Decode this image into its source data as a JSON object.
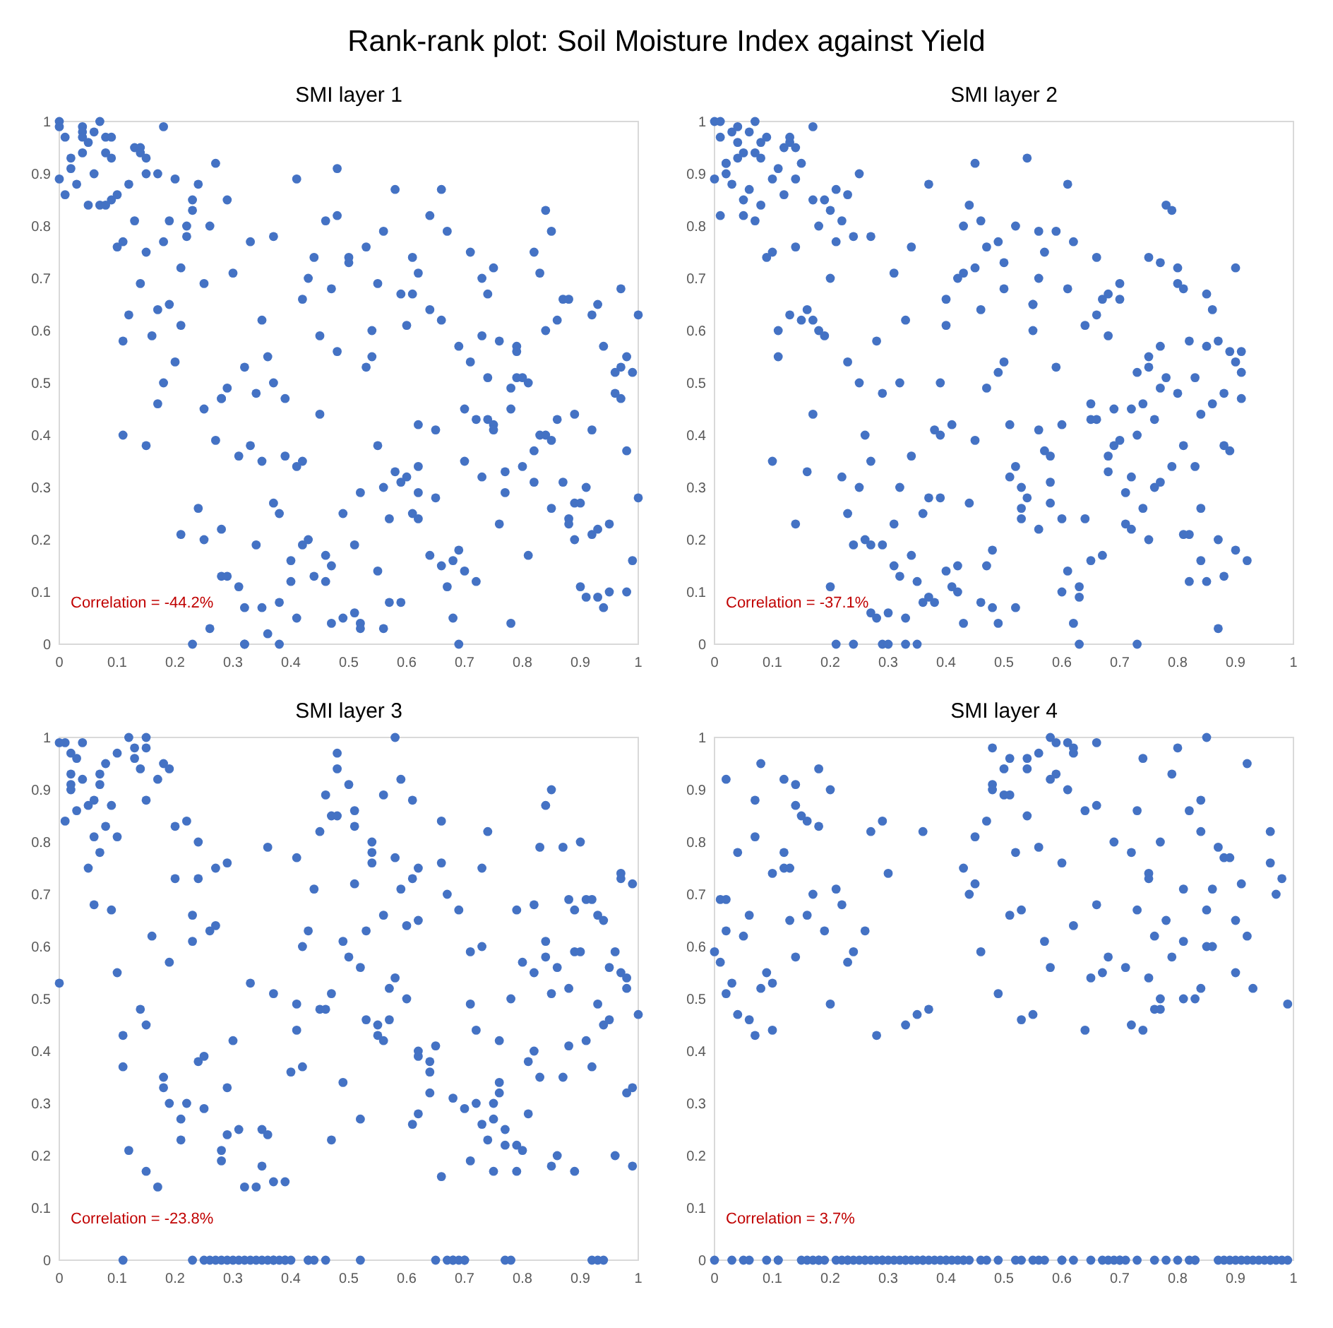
{
  "chart_data": [
    {
      "type": "scatter",
      "title": "Rank-rank plot: Soil Moisture Index against Yield",
      "subtitle": "SMI layer 1",
      "marker": "circle",
      "xlim": [
        0,
        1
      ],
      "ylim": [
        0,
        1
      ],
      "xticks": [
        0,
        0.1,
        0.2,
        0.3,
        0.4,
        0.5,
        0.6,
        0.7,
        0.8,
        0.9,
        1
      ],
      "yticks": [
        0,
        0.1,
        0.2,
        0.3,
        0.4,
        0.5,
        0.6,
        0.7,
        0.8,
        0.9,
        1
      ],
      "annotations": [
        "Correlation = -44.2%"
      ],
      "series": [
        {
          "color": "#4472c4",
          "x": [
            0,
            0,
            0.01,
            0,
            0.01,
            0.02,
            0.02,
            0.03,
            0.04,
            0.04,
            0.04,
            0.05,
            0.04,
            0.06,
            0.07,
            0.06,
            0.08,
            0.09,
            0.08,
            0.09,
            0.05,
            0.07,
            0.08,
            0.09,
            0.1,
            0.12,
            0.13,
            0.14,
            0.14,
            0.15,
            0.15,
            0.17,
            0.18,
            0.2,
            0.1,
            0.11,
            0.13,
            0.15,
            0.14,
            0.12,
            0.11,
            0.11,
            0.15,
            0.16,
            0.17,
            0.19,
            0.18,
            0.19,
            0.22,
            0.22,
            0.21,
            0.21,
            0.2,
            0.18,
            0.17,
            0.23,
            0.23,
            0.24,
            0.26,
            0.25,
            0.27,
            0.29,
            0.3,
            0.25,
            0.27,
            0.28,
            0.28,
            0.29,
            0.32,
            0.31,
            0.33,
            0.34,
            0.35,
            0.35,
            0.36,
            0.37,
            0.37,
            0.33,
            0.39,
            0.39,
            0.41,
            0.42,
            0.37,
            0.38,
            0.21,
            0.24,
            0.25,
            0.28,
            0.28,
            0.29,
            0.31,
            0.32,
            0.34,
            0.35,
            0.36,
            0.26,
            0.23,
            0.32,
            0.32,
            0.38,
            0.38,
            0.4,
            0.4,
            0.41,
            0.42,
            0.43,
            0.44,
            0.46,
            0.46,
            0.47,
            0.47,
            0.49,
            0.49,
            0.51,
            0.51,
            0.52,
            0.52,
            0.52,
            0.56,
            0.55,
            0.57,
            0.59,
            0.57,
            0.56,
            0.58,
            0.59,
            0.6,
            0.61,
            0.62,
            0.62,
            0.62,
            0.55,
            0.62,
            0.65,
            0.65,
            0.64,
            0.66,
            0.68,
            0.67,
            0.69,
            0.7,
            0.72,
            0.68,
            0.69,
            0.7,
            0.7,
            0.72,
            0.73,
            0.76,
            0.77,
            0.77,
            0.78,
            0.81,
            0.8,
            0.82,
            0.82,
            0.83,
            0.84,
            0.85,
            0.86,
            0.89,
            0.85,
            0.87,
            0.88,
            0.88,
            0.89,
            0.89,
            0.9,
            0.9,
            0.91,
            0.92,
            0.91,
            0.92,
            0.93,
            0.93,
            0.95,
            0.94,
            0.95,
            0.98,
            0.98,
            0.99,
            1,
            1,
            0.97,
            0.99,
            0.98,
            0.97,
            0.96,
            0.94,
            0.96,
            0.97,
            0.92,
            0.93,
            0.86,
            0.87,
            0.88,
            0.84,
            0.82,
            0.83,
            0.84,
            0.85,
            0.75,
            0.73,
            0.74,
            0.71,
            0.73,
            0.76,
            0.79,
            0.79,
            0.74,
            0.78,
            0.79,
            0.8,
            0.81,
            0.74,
            0.75,
            0.75,
            0.78,
            0.71,
            0.69,
            0.67,
            0.66,
            0.64,
            0.66,
            0.64,
            0.61,
            0.62,
            0.61,
            0.59,
            0.6,
            0.58,
            0.56,
            0.53,
            0.55,
            0.54,
            0.54,
            0.53,
            0.5,
            0.5,
            0.47,
            0.46,
            0.48,
            0.48,
            0.45,
            0.48,
            0.45,
            0.42,
            0.43,
            0.44,
            0.41
          ],
          "values": [
            1,
            0.99,
            0.97,
            0.89,
            0.86,
            0.93,
            0.91,
            0.88,
            0.99,
            0.98,
            0.97,
            0.96,
            0.94,
            0.98,
            1,
            0.9,
            0.94,
            0.93,
            0.97,
            0.97,
            0.84,
            0.84,
            0.84,
            0.85,
            0.86,
            0.88,
            0.95,
            0.95,
            0.94,
            0.93,
            0.9,
            0.9,
            0.99,
            0.89,
            0.76,
            0.77,
            0.81,
            0.75,
            0.69,
            0.63,
            0.58,
            0.4,
            0.38,
            0.59,
            0.64,
            0.65,
            0.77,
            0.81,
            0.8,
            0.78,
            0.72,
            0.61,
            0.54,
            0.5,
            0.46,
            0.85,
            0.83,
            0.88,
            0.8,
            0.69,
            0.92,
            0.85,
            0.71,
            0.45,
            0.39,
            0.47,
            0.47,
            0.49,
            0.53,
            0.36,
            0.38,
            0.48,
            0.35,
            0.62,
            0.55,
            0.5,
            0.78,
            0.77,
            0.47,
            0.36,
            0.34,
            0.35,
            0.27,
            0.25,
            0.21,
            0.26,
            0.2,
            0.22,
            0.13,
            0.13,
            0.11,
            0.07,
            0.19,
            0.07,
            0.02,
            0.03,
            0,
            0,
            0,
            0,
            0.08,
            0.16,
            0.12,
            0.05,
            0.19,
            0.2,
            0.13,
            0.17,
            0.12,
            0.15,
            0.04,
            0.25,
            0.05,
            0.06,
            0.19,
            0.29,
            0.04,
            0.03,
            0.03,
            0.14,
            0.08,
            0.08,
            0.24,
            0.3,
            0.33,
            0.31,
            0.32,
            0.25,
            0.34,
            0.29,
            0.24,
            0.38,
            0.42,
            0.41,
            0.28,
            0.17,
            0.15,
            0.16,
            0.11,
            0.18,
            0.14,
            0.12,
            0.05,
            0,
            0.35,
            0.45,
            0.43,
            0.32,
            0.23,
            0.33,
            0.29,
            0.04,
            0.17,
            0.34,
            0.31,
            0.37,
            0.4,
            0.4,
            0.39,
            0.43,
            0.44,
            0.26,
            0.31,
            0.24,
            0.23,
            0.2,
            0.27,
            0.27,
            0.11,
            0.09,
            0.41,
            0.3,
            0.21,
            0.22,
            0.09,
            0.1,
            0.07,
            0.23,
            0.1,
            0.37,
            0.16,
            0.28,
            0.63,
            0.68,
            0.52,
            0.55,
            0.53,
            0.52,
            0.57,
            0.48,
            0.47,
            0.63,
            0.65,
            0.62,
            0.66,
            0.66,
            0.6,
            0.75,
            0.71,
            0.83,
            0.79,
            0.72,
            0.7,
            0.67,
            0.75,
            0.59,
            0.58,
            0.56,
            0.57,
            0.51,
            0.49,
            0.51,
            0.51,
            0.5,
            0.43,
            0.42,
            0.41,
            0.45,
            0.54,
            0.57,
            0.79,
            0.87,
            0.82,
            0.62,
            0.64,
            0.74,
            0.71,
            0.67,
            0.67,
            0.61,
            0.87,
            0.79,
            0.76,
            0.69,
            0.6,
            0.55,
            0.53,
            0.73,
            0.74,
            0.68,
            0.81,
            0.82,
            0.91,
            0.59,
            0.56,
            0.44,
            0.66,
            0.7,
            0.74,
            0.89
          ]
        }
      ]
    },
    {
      "type": "scatter",
      "title": "SMI layer 2",
      "marker": "circle",
      "xlim": [
        0,
        1
      ],
      "ylim": [
        0,
        1
      ],
      "xticks": [
        0,
        0.1,
        0.2,
        0.3,
        0.4,
        0.5,
        0.6,
        0.7,
        0.8,
        0.9,
        1
      ],
      "yticks": [
        0,
        0.1,
        0.2,
        0.3,
        0.4,
        0.5,
        0.6,
        0.7,
        0.8,
        0.9,
        1
      ],
      "annotations": [
        "Correlation = -37.1%"
      ],
      "series": [
        {
          "color": "#4472c4",
          "x": [
            0,
            0.01,
            0,
            0.01,
            0.01,
            0.02,
            0.02,
            0.02,
            0.03,
            0.03,
            0.04,
            0.04,
            0.04,
            0.05,
            0.05,
            0.05,
            0.06,
            0.06,
            0.07,
            0.07,
            0.08,
            0.08,
            0.07,
            0.08,
            0.09,
            0.1,
            0.09,
            0.1,
            0.11,
            0.12,
            0.12,
            0.13,
            0.13,
            0.14,
            0.14,
            0.15,
            0.17,
            0.14,
            0.11,
            0.11,
            0.13,
            0.15,
            0.16,
            0.17,
            0.18,
            0.19,
            0.17,
            0.18,
            0.19,
            0.2,
            0.21,
            0.23,
            0.22,
            0.21,
            0.24,
            0.25,
            0.27,
            0.2,
            0.23,
            0.25,
            0.17,
            0.1,
            0.14,
            0.16,
            0.2,
            0.22,
            0.23,
            0.24,
            0.25,
            0.26,
            0.27,
            0.26,
            0.27,
            0.28,
            0.29,
            0.29,
            0.27,
            0.28,
            0.3,
            0.31,
            0.31,
            0.32,
            0.32,
            0.32,
            0.31,
            0.34,
            0.33,
            0.34,
            0.34,
            0.33,
            0.35,
            0.37,
            0.36,
            0.36,
            0.37,
            0.38,
            0.39,
            0.37,
            0.39,
            0.38,
            0.39,
            0.4,
            0.4,
            0.41,
            0.4,
            0.41,
            0.42,
            0.42,
            0.43,
            0.44,
            0.42,
            0.43,
            0.45,
            0.43,
            0.44,
            0.45,
            0.46,
            0.47,
            0.46,
            0.45,
            0.46,
            0.47,
            0.47,
            0.48,
            0.48,
            0.49,
            0.49,
            0.49,
            0.5,
            0.5,
            0.5,
            0.51,
            0.51,
            0.52,
            0.52,
            0.52,
            0.53,
            0.53,
            0.53,
            0.54,
            0.54,
            0.55,
            0.55,
            0.55,
            0.56,
            0.56,
            0.56,
            0.57,
            0.56,
            0.57,
            0.58,
            0.58,
            0.58,
            0.59,
            0.59,
            0.6,
            0.6,
            0.6,
            0.61,
            0.61,
            0.62,
            0.61,
            0.63,
            0.63,
            0.62,
            0.63,
            0.64,
            0.64,
            0.65,
            0.65,
            0.65,
            0.66,
            0.66,
            0.66,
            0.67,
            0.67,
            0.68,
            0.68,
            0.68,
            0.68,
            0.69,
            0.7,
            0.69,
            0.7,
            0.7,
            0.71,
            0.71,
            0.72,
            0.72,
            0.72,
            0.73,
            0.73,
            0.73,
            0.74,
            0.74,
            0.75,
            0.75,
            0.75,
            0.75,
            0.76,
            0.76,
            0.77,
            0.77,
            0.77,
            0.77,
            0.78,
            0.79,
            0.78,
            0.79,
            0.8,
            0.8,
            0.8,
            0.81,
            0.81,
            0.81,
            0.82,
            0.82,
            0.82,
            0.83,
            0.83,
            0.84,
            0.84,
            0.84,
            0.85,
            0.85,
            0.86,
            0.86,
            0.85,
            0.87,
            0.87,
            0.87,
            0.88,
            0.88,
            0.88,
            0.89,
            0.89,
            0.9,
            0.9,
            0.91,
            0.9,
            0.91,
            0.91,
            0.92,
            0.21,
            0.24,
            0.29,
            0.3,
            0.33,
            0.35
          ],
          "values": [
            1,
            1,
            0.89,
            0.82,
            0.97,
            0.9,
            0.92,
            0.92,
            0.88,
            0.98,
            0.99,
            0.93,
            0.96,
            0.94,
            0.85,
            0.82,
            0.98,
            0.87,
            1,
            0.94,
            0.96,
            0.93,
            0.81,
            0.84,
            0.97,
            0.89,
            0.74,
            0.75,
            0.91,
            0.86,
            0.95,
            0.96,
            0.97,
            0.95,
            0.89,
            0.92,
            0.99,
            0.76,
            0.6,
            0.55,
            0.63,
            0.62,
            0.64,
            0.62,
            0.6,
            0.59,
            0.85,
            0.8,
            0.85,
            0.83,
            0.87,
            0.86,
            0.81,
            0.77,
            0.78,
            0.9,
            0.78,
            0.7,
            0.54,
            0.5,
            0.44,
            0.35,
            0.23,
            0.33,
            0.11,
            0.32,
            0.25,
            0.19,
            0.3,
            0.4,
            0.35,
            0.2,
            0.19,
            0.58,
            0.48,
            0.19,
            0.06,
            0.05,
            0.06,
            0.15,
            0.23,
            0.13,
            0.3,
            0.5,
            0.71,
            0.76,
            0.62,
            0.36,
            0.17,
            0.05,
            0.12,
            0.09,
            0.08,
            0.25,
            0.28,
            0.08,
            0.28,
            0.88,
            0.5,
            0.41,
            0.4,
            0.61,
            0.66,
            0.42,
            0.14,
            0.11,
            0.1,
            0.15,
            0.04,
            0.27,
            0.7,
            0.71,
            0.72,
            0.8,
            0.84,
            0.92,
            0.81,
            0.76,
            0.64,
            0.39,
            0.08,
            0.15,
            0.49,
            0.18,
            0.07,
            0.04,
            0.77,
            0.52,
            0.54,
            0.73,
            0.68,
            0.42,
            0.32,
            0.07,
            0.8,
            0.34,
            0.26,
            0.24,
            0.3,
            0.28,
            0.93,
            0.65,
            0.65,
            0.6,
            0.41,
            0.22,
            0.79,
            0.75,
            0.7,
            0.37,
            0.36,
            0.31,
            0.27,
            0.53,
            0.79,
            0.24,
            0.42,
            0.1,
            0.88,
            0.68,
            0.77,
            0.14,
            0.11,
            0.09,
            0.04,
            0,
            0.61,
            0.24,
            0.46,
            0.16,
            0.43,
            0.63,
            0.74,
            0.43,
            0.66,
            0.17,
            0.33,
            0.59,
            0.67,
            0.36,
            0.38,
            0.39,
            0.45,
            0.69,
            0.66,
            0.29,
            0.23,
            0.22,
            0.32,
            0.45,
            0,
            0.52,
            0.4,
            0.46,
            0.26,
            0.53,
            0.55,
            0.2,
            0.74,
            0.43,
            0.3,
            0.31,
            0.73,
            0.57,
            0.49,
            0.84,
            0.83,
            0.51,
            0.34,
            0.48,
            0.69,
            0.72,
            0.38,
            0.68,
            0.21,
            0.21,
            0.58,
            0.12,
            0.51,
            0.34,
            0.26,
            0.16,
            0.44,
            0.57,
            0.67,
            0.64,
            0.46,
            0.12,
            0.03,
            0.58,
            0.2,
            0.13,
            0.48,
            0.38,
            0.37,
            0.56,
            0.72,
            0.54,
            0.56,
            0.18,
            0.52,
            0.47,
            0.16,
            0,
            0,
            0,
            0,
            0,
            0
          ]
        }
      ]
    },
    {
      "type": "scatter",
      "title": "SMI layer 3",
      "marker": "circle",
      "xlim": [
        0,
        1
      ],
      "ylim": [
        0,
        1
      ],
      "xticks": [
        0,
        0.1,
        0.2,
        0.3,
        0.4,
        0.5,
        0.6,
        0.7,
        0.8,
        0.9,
        1
      ],
      "yticks": [
        0,
        0.1,
        0.2,
        0.3,
        0.4,
        0.5,
        0.6,
        0.7,
        0.8,
        0.9,
        1
      ],
      "annotations": [
        "Correlation = -23.8%"
      ],
      "series": [
        {
          "color": "#4472c4",
          "x": [
            0,
            0,
            0.01,
            0.01,
            0.02,
            0.02,
            0.02,
            0.02,
            0.03,
            0.03,
            0.04,
            0.04,
            0.05,
            0.05,
            0.06,
            0.06,
            0.06,
            0.07,
            0.07,
            0.07,
            0.08,
            0.08,
            0.09,
            0.09,
            0.1,
            0.1,
            0.1,
            0.11,
            0.11,
            0.12,
            0.13,
            0.13,
            0.14,
            0.15,
            0.15,
            0.15,
            0.12,
            0.14,
            0.15,
            0.16,
            0.17,
            0.18,
            0.19,
            0.15,
            0.17,
            0.18,
            0.18,
            0.19,
            0.19,
            0.2,
            0.2,
            0.21,
            0.21,
            0.22,
            0.22,
            0.23,
            0.23,
            0.24,
            0.24,
            0.24,
            0.25,
            0.25,
            0.26,
            0.27,
            0.27,
            0.28,
            0.28,
            0.29,
            0.29,
            0.29,
            0.3,
            0.31,
            0.32,
            0.33,
            0.34,
            0.35,
            0.35,
            0.36,
            0.36,
            0.37,
            0.37,
            0.39,
            0.4,
            0.41,
            0.41,
            0.41,
            0.42,
            0.42,
            0.43,
            0.44,
            0.45,
            0.46,
            0.45,
            0.46,
            0.47,
            0.48,
            0.48,
            0.48,
            0.47,
            0.47,
            0.49,
            0.49,
            0.5,
            0.5,
            0.51,
            0.51,
            0.51,
            0.52,
            0.52,
            0.53,
            0.53,
            0.54,
            0.54,
            0.54,
            0.55,
            0.55,
            0.56,
            0.56,
            0.56,
            0.57,
            0.57,
            0.58,
            0.58,
            0.58,
            0.59,
            0.59,
            0.6,
            0.6,
            0.61,
            0.61,
            0.61,
            0.62,
            0.62,
            0.62,
            0.62,
            0.62,
            0.64,
            0.64,
            0.64,
            0.65,
            0.66,
            0.66,
            0.66,
            0.67,
            0.68,
            0.69,
            0.7,
            0.71,
            0.71,
            0.71,
            0.72,
            0.72,
            0.73,
            0.73,
            0.73,
            0.74,
            0.74,
            0.75,
            0.75,
            0.75,
            0.76,
            0.76,
            0.76,
            0.77,
            0.77,
            0.78,
            0.79,
            0.79,
            0.79,
            0.8,
            0.8,
            0.81,
            0.81,
            0.82,
            0.82,
            0.82,
            0.83,
            0.83,
            0.84,
            0.84,
            0.84,
            0.85,
            0.85,
            0.85,
            0.86,
            0.86,
            0.87,
            0.87,
            0.88,
            0.88,
            0.88,
            0.89,
            0.89,
            0.89,
            0.9,
            0.9,
            0.91,
            0.91,
            0.92,
            0.92,
            0.93,
            0.93,
            0.94,
            0.94,
            0.95,
            0.95,
            0.96,
            0.96,
            0.97,
            0.97,
            0.97,
            0.98,
            0.98,
            0.98,
            0.99,
            0.99,
            0.99,
            1,
            0.11,
            0.23,
            0.25,
            0.26,
            0.27,
            0.28,
            0.29,
            0.3,
            0.31,
            0.32,
            0.33,
            0.34,
            0.35,
            0.36,
            0.37,
            0.37,
            0.38,
            0.39,
            0.39,
            0.4,
            0.43,
            0.43,
            0.44,
            0.46,
            0.52,
            0.65,
            0.67,
            0.68,
            0.68,
            0.69,
            0.7,
            0.7,
            0.77,
            0.78,
            0.92,
            0.93,
            0.94
          ],
          "values": [
            0.53,
            0.99,
            0.99,
            0.84,
            0.93,
            0.9,
            0.97,
            0.91,
            0.86,
            0.96,
            0.92,
            0.99,
            0.75,
            0.87,
            0.81,
            0.68,
            0.88,
            0.78,
            0.93,
            0.91,
            0.83,
            0.95,
            0.67,
            0.87,
            0.97,
            0.81,
            0.55,
            0.43,
            0.37,
            1,
            0.98,
            0.96,
            0.94,
            1,
            0.98,
            0.88,
            0.21,
            0.48,
            0.45,
            0.62,
            0.92,
            0.95,
            0.94,
            0.17,
            0.14,
            0.33,
            0.35,
            0.3,
            0.57,
            0.73,
            0.83,
            0.27,
            0.23,
            0.3,
            0.84,
            0.66,
            0.61,
            0.73,
            0.38,
            0.8,
            0.29,
            0.39,
            0.63,
            0.75,
            0.64,
            0.21,
            0.19,
            0.33,
            0.76,
            0.24,
            0.42,
            0.25,
            0.14,
            0.53,
            0.14,
            0.25,
            0.18,
            0.24,
            0.79,
            0.51,
            0.15,
            0.15,
            0.36,
            0.77,
            0.49,
            0.44,
            0.6,
            0.37,
            0.63,
            0.71,
            0.48,
            0.48,
            0.82,
            0.89,
            0.85,
            0.85,
            0.97,
            0.94,
            0.51,
            0.23,
            0.61,
            0.34,
            0.58,
            0.91,
            0.72,
            0.83,
            0.86,
            0.56,
            0.27,
            0.63,
            0.46,
            0.76,
            0.78,
            0.8,
            0.45,
            0.43,
            0.89,
            0.66,
            0.42,
            0.52,
            0.46,
            0.54,
            1,
            0.77,
            0.71,
            0.92,
            0.64,
            0.5,
            0.26,
            0.88,
            0.73,
            0.75,
            0.39,
            0.4,
            0.28,
            0.65,
            0.36,
            0.38,
            0.32,
            0.41,
            0.84,
            0.76,
            0.16,
            0.7,
            0.31,
            0.67,
            0.29,
            0.49,
            0.19,
            0.59,
            0.44,
            0.3,
            0.6,
            0.26,
            0.75,
            0.82,
            0.23,
            0.3,
            0.17,
            0.27,
            0.34,
            0.42,
            0.32,
            0.22,
            0.25,
            0.5,
            0.67,
            0.17,
            0.22,
            0.21,
            0.57,
            0.38,
            0.28,
            0.68,
            0.4,
            0.55,
            0.35,
            0.79,
            0.61,
            0.58,
            0.87,
            0.18,
            0.9,
            0.51,
            0.2,
            0.56,
            0.79,
            0.35,
            0.69,
            0.52,
            0.41,
            0.59,
            0.17,
            0.67,
            0.59,
            0.8,
            0.69,
            0.42,
            0.69,
            0.37,
            0.66,
            0.49,
            0.65,
            0.45,
            0.46,
            0.56,
            0.2,
            0.59,
            0.55,
            0.73,
            0.74,
            0.52,
            0.54,
            0.32,
            0.72,
            0.33,
            0.18,
            0.47,
            0,
            0,
            0,
            0,
            0,
            0,
            0,
            0,
            0,
            0,
            0,
            0,
            0,
            0,
            0,
            0,
            0,
            0,
            0,
            0,
            0,
            0,
            0,
            0,
            0,
            0,
            0,
            0,
            0,
            0,
            0,
            0,
            0,
            0,
            0,
            0,
            0
          ]
        }
      ]
    },
    {
      "type": "scatter",
      "title": "SMI layer 4",
      "marker": "circle",
      "xlim": [
        0,
        1
      ],
      "ylim": [
        0,
        1
      ],
      "xticks": [
        0,
        0.1,
        0.2,
        0.3,
        0.4,
        0.5,
        0.6,
        0.7,
        0.8,
        0.9,
        1
      ],
      "yticks": [
        0,
        0.1,
        0.2,
        0.3,
        0.4,
        0.5,
        0.6,
        0.7,
        0.8,
        0.9,
        1
      ],
      "annotations": [
        "Correlation = 3.7%"
      ],
      "series": [
        {
          "color": "#4472c4",
          "x": [
            0,
            0.01,
            0.02,
            0.01,
            0.02,
            0.02,
            0.02,
            0.03,
            0.04,
            0.04,
            0.05,
            0.06,
            0.06,
            0.07,
            0.07,
            0.07,
            0.08,
            0.08,
            0.09,
            0.1,
            0.1,
            0.1,
            0.12,
            0.12,
            0.12,
            0.13,
            0.13,
            0.14,
            0.14,
            0.14,
            0.15,
            0.16,
            0.16,
            0.17,
            0.18,
            0.18,
            0.19,
            0.2,
            0.2,
            0.21,
            0.22,
            0.23,
            0.24,
            0.26,
            0.27,
            0.28,
            0.29,
            0.3,
            0.33,
            0.35,
            0.36,
            0.37,
            0.43,
            0.44,
            0.45,
            0.45,
            0.46,
            0.47,
            0.48,
            0.48,
            0.48,
            0.49,
            0.5,
            0.5,
            0.51,
            0.51,
            0.51,
            0.52,
            0.53,
            0.53,
            0.54,
            0.54,
            0.54,
            0.55,
            0.56,
            0.56,
            0.57,
            0.58,
            0.58,
            0.58,
            0.59,
            0.59,
            0.6,
            0.61,
            0.61,
            0.62,
            0.62,
            0.62,
            0.64,
            0.64,
            0.65,
            0.66,
            0.66,
            0.66,
            0.67,
            0.68,
            0.69,
            0.71,
            0.72,
            0.72,
            0.73,
            0.73,
            0.74,
            0.74,
            0.75,
            0.75,
            0.75,
            0.76,
            0.76,
            0.77,
            0.77,
            0.77,
            0.78,
            0.79,
            0.79,
            0.8,
            0.81,
            0.81,
            0.81,
            0.82,
            0.83,
            0.84,
            0.84,
            0.84,
            0.85,
            0.85,
            0.85,
            0.86,
            0.86,
            0.87,
            0.88,
            0.89,
            0.9,
            0.9,
            0.91,
            0.92,
            0.92,
            0.93,
            0.96,
            0.96,
            0.97,
            0.98,
            0.99,
            0,
            0.03,
            0.05,
            0.06,
            0.09,
            0.11,
            0.11,
            0.15,
            0.16,
            0.17,
            0.18,
            0.18,
            0.19,
            0.21,
            0.22,
            0.23,
            0.23,
            0.24,
            0.25,
            0.26,
            0.26,
            0.27,
            0.28,
            0.29,
            0.29,
            0.3,
            0.31,
            0.32,
            0.33,
            0.33,
            0.34,
            0.35,
            0.36,
            0.36,
            0.37,
            0.38,
            0.39,
            0.4,
            0.4,
            0.41,
            0.42,
            0.43,
            0.43,
            0.44,
            0.46,
            0.47,
            0.49,
            0.52,
            0.53,
            0.55,
            0.56,
            0.57,
            0.6,
            0.6,
            0.62,
            0.65,
            0.67,
            0.68,
            0.69,
            0.7,
            0.7,
            0.71,
            0.73,
            0.76,
            0.78,
            0.8,
            0.82,
            0.83,
            0.83,
            0.87,
            0.88,
            0.89,
            0.9,
            0.91,
            0.92,
            0.93,
            0.94,
            0.95,
            0.96,
            0.96,
            0.97,
            0.98,
            0.99
          ],
          "values": [
            0.59,
            0.57,
            0.51,
            0.69,
            0.69,
            0.92,
            0.63,
            0.53,
            0.47,
            0.78,
            0.62,
            0.66,
            0.46,
            0.88,
            0.81,
            0.43,
            0.52,
            0.95,
            0.55,
            0.53,
            0.44,
            0.74,
            0.75,
            0.92,
            0.78,
            0.65,
            0.75,
            0.87,
            0.58,
            0.91,
            0.85,
            0.84,
            0.66,
            0.7,
            0.94,
            0.83,
            0.63,
            0.9,
            0.49,
            0.71,
            0.68,
            0.57,
            0.59,
            0.63,
            0.82,
            0.43,
            0.84,
            0.74,
            0.45,
            0.47,
            0.82,
            0.48,
            0.75,
            0.7,
            0.81,
            0.72,
            0.59,
            0.84,
            0.91,
            0.98,
            0.9,
            0.51,
            0.94,
            0.89,
            0.96,
            0.66,
            0.89,
            0.78,
            0.46,
            0.67,
            0.94,
            0.85,
            0.96,
            0.47,
            0.97,
            0.79,
            0.61,
            0.56,
            1,
            0.92,
            0.93,
            0.99,
            0.76,
            0.99,
            0.9,
            0.97,
            0.64,
            0.98,
            0.86,
            0.44,
            0.54,
            0.87,
            0.99,
            0.68,
            0.55,
            0.58,
            0.8,
            0.56,
            0.78,
            0.45,
            0.86,
            0.67,
            0.96,
            0.44,
            0.74,
            0.54,
            0.73,
            0.48,
            0.62,
            0.48,
            0.5,
            0.8,
            0.65,
            0.58,
            0.93,
            0.98,
            0.71,
            0.61,
            0.5,
            0.86,
            0.5,
            0.52,
            0.88,
            0.82,
            0.6,
            1,
            0.67,
            0.6,
            0.71,
            0.79,
            0.77,
            0.77,
            0.65,
            0.55,
            0.72,
            0.62,
            0.95,
            0.52,
            0.76,
            0.82,
            0.7,
            0.73,
            0.49,
            0,
            0,
            0,
            0,
            0,
            0,
            0,
            0,
            0,
            0,
            0,
            0,
            0,
            0,
            0,
            0,
            0,
            0,
            0,
            0,
            0,
            0,
            0,
            0,
            0,
            0,
            0,
            0,
            0,
            0,
            0,
            0,
            0,
            0,
            0,
            0,
            0,
            0,
            0,
            0,
            0,
            0,
            0,
            0,
            0,
            0,
            0,
            0,
            0,
            0,
            0,
            0,
            0,
            0,
            0,
            0,
            0,
            0,
            0,
            0,
            0,
            0,
            0,
            0,
            0,
            0,
            0,
            0,
            0,
            0,
            0,
            0,
            0,
            0,
            0,
            0,
            0,
            0,
            0,
            0,
            0,
            0,
            0
          ]
        }
      ]
    }
  ]
}
